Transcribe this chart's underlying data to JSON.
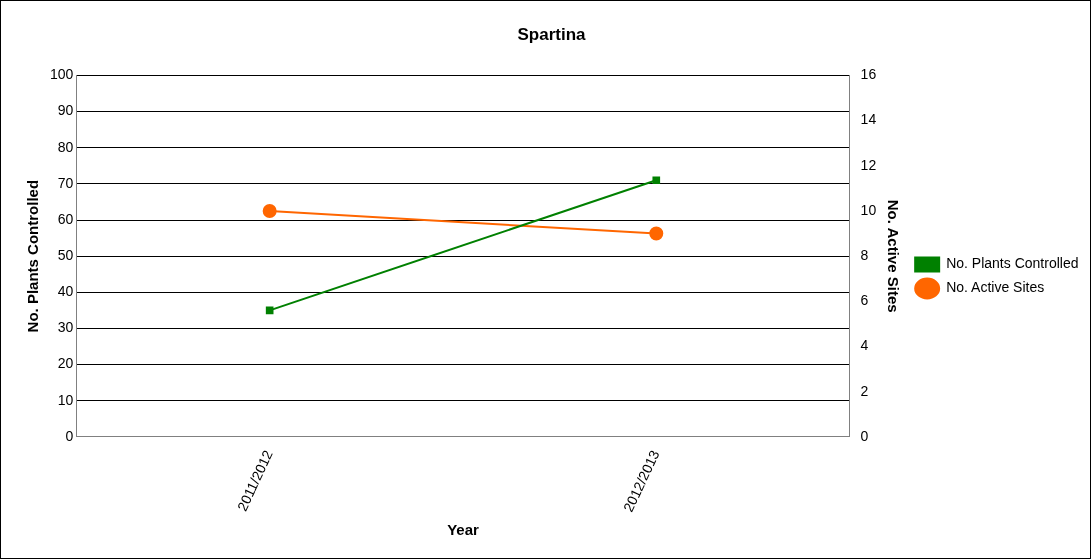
{
  "chart_data": {
    "type": "line",
    "title": "Spartina",
    "xlabel": "Year",
    "ylabel": "No. Plants Controlled",
    "y2label": "No. Active Sites",
    "categories": [
      "2011/2012",
      "2012/2013"
    ],
    "series": [
      {
        "name": "No. Plants Controlled",
        "color": "#008000",
        "values": [
          35,
          71
        ],
        "marker": "square"
      },
      {
        "name": "No. Active Sites",
        "color": "#ff6600",
        "values": [
          10,
          9
        ],
        "marker": "circle",
        "axis": "y2"
      }
    ],
    "ylim": [
      0,
      100
    ],
    "yticks": [
      0,
      10,
      20,
      30,
      40,
      50,
      60,
      70,
      80,
      90,
      100
    ],
    "y2lim": [
      0,
      16
    ],
    "y2ticks": [
      0,
      2,
      4,
      6,
      8,
      10,
      12,
      14,
      16
    ],
    "grid": "y",
    "legend": "right"
  }
}
